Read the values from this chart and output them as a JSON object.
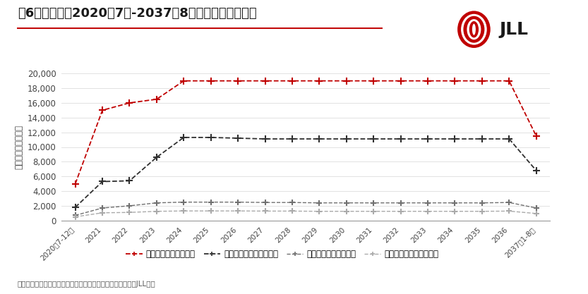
{
  "title": "图6：新城热力2020年7月-2037年8月供热收入预测情况",
  "ylabel": "收入（人民币万元）",
  "source": "来源：北京新城热力公司官网，北清环能重大资产购买公告，JLL分析",
  "x_labels": [
    "2020年7-12月",
    "2021",
    "2022",
    "2023",
    "2024",
    "2025",
    "2026",
    "2027",
    "2028",
    "2029",
    "2030",
    "2031",
    "2032",
    "2033",
    "2034",
    "2035",
    "2036",
    "2037年1-8月"
  ],
  "series": [
    {
      "name": "集中供热收入（居民）",
      "color": "#C00000",
      "linestyle": "--",
      "marker": "+",
      "markersize": 7,
      "linewidth": 1.3,
      "values": [
        5000,
        15000,
        16000,
        16500,
        19000,
        19000,
        19000,
        19000,
        19000,
        19000,
        19000,
        19000,
        19000,
        19000,
        19000,
        19000,
        19000,
        11500
      ]
    },
    {
      "name": "集中供热收入（非居民）",
      "color": "#303030",
      "linestyle": "--",
      "marker": "+",
      "markersize": 7,
      "linewidth": 1.3,
      "values": [
        1800,
        5300,
        5400,
        8600,
        11300,
        11300,
        11200,
        11100,
        11100,
        11100,
        11100,
        11100,
        11100,
        11100,
        11100,
        11100,
        11100,
        6800
      ]
    },
    {
      "name": "燃气供热收入（居民）",
      "color": "#707070",
      "linestyle": "--",
      "marker": "+",
      "markersize": 6,
      "linewidth": 1.0,
      "values": [
        700,
        1700,
        2000,
        2400,
        2500,
        2500,
        2500,
        2450,
        2450,
        2400,
        2400,
        2400,
        2400,
        2400,
        2400,
        2400,
        2450,
        1700
      ]
    },
    {
      "name": "燃气供热收入（非居民）",
      "color": "#AAAAAA",
      "linestyle": "--",
      "marker": "+",
      "markersize": 6,
      "linewidth": 1.0,
      "values": [
        500,
        1050,
        1100,
        1250,
        1300,
        1300,
        1300,
        1280,
        1280,
        1250,
        1250,
        1250,
        1250,
        1250,
        1250,
        1250,
        1280,
        950
      ]
    }
  ],
  "ylim": [
    0,
    20000
  ],
  "yticks": [
    0,
    2000,
    4000,
    6000,
    8000,
    10000,
    12000,
    14000,
    16000,
    18000,
    20000
  ],
  "background_color": "#FFFFFF",
  "title_fontsize": 13,
  "axis_fontsize": 8.5,
  "legend_fontsize": 8.5,
  "source_fontsize": 7.5,
  "title_color": "#1a1a1a",
  "separator_color": "#C00000",
  "jll_color": "#C00000",
  "jll_text_color": "#1a1a1a"
}
